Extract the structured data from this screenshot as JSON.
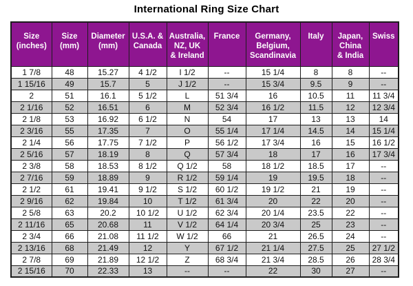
{
  "page": {
    "title": "International Ring Size Chart"
  },
  "colors": {
    "header_bg": "#8E1690",
    "header_text": "#FFFFFF",
    "row_bg": "#FFFFFF",
    "row_alt_bg": "#C9C9C9",
    "border": "#1C1C1C",
    "title": "#000000"
  },
  "chart_data": {
    "type": "table",
    "title": "International Ring Size Chart",
    "columns": [
      "Size (inches)",
      "Size (mm)",
      "Diameter (mm)",
      "U.S.A. & Canada",
      "Australia, NZ, UK & Ireland",
      "France",
      "Germany, Belgium, Scandinavia",
      "Italy",
      "Japan, China & India",
      "Swiss"
    ],
    "header_display": [
      "Size\n(inches)",
      "Size\n(mm)",
      "Diameter\n(mm)",
      "U.S.A. &\nCanada",
      "Australia,\nNZ, UK\n& Ireland",
      "France",
      "Germany,\nBelgium,\nScandinavia",
      "Italy",
      "Japan,\nChina\n& India",
      "Swiss"
    ],
    "rows": [
      [
        "1 7/8",
        "48",
        "15.27",
        "4 1/2",
        "I 1/2",
        "--",
        "15 1/4",
        "8",
        "8",
        "--"
      ],
      [
        "1 15/16",
        "49",
        "15.7",
        "5",
        "J 1/2",
        "--",
        "15 3/4",
        "9.5",
        "9",
        "--"
      ],
      [
        "2",
        "51",
        "16.1",
        "5 1/2",
        "L",
        "51 3/4",
        "16",
        "10.5",
        "11",
        "11 3/4"
      ],
      [
        "2 1/16",
        "52",
        "16.51",
        "6",
        "M",
        "52 3/4",
        "16 1/2",
        "11.5",
        "12",
        "12 3/4"
      ],
      [
        "2 1/8",
        "53",
        "16.92",
        "6 1/2",
        "N",
        "54",
        "17",
        "13",
        "13",
        "14"
      ],
      [
        "2 3/16",
        "55",
        "17.35",
        "7",
        "O",
        "55 1/4",
        "17 1/4",
        "14.5",
        "14",
        "15 1/4"
      ],
      [
        "2 1/4",
        "56",
        "17.75",
        "7 1/2",
        "P",
        "56 1/2",
        "17 3/4",
        "16",
        "15",
        "16 1/2"
      ],
      [
        "2 5/16",
        "57",
        "18.19",
        "8",
        "Q",
        "57 3/4",
        "18",
        "17",
        "16",
        "17 3/4"
      ],
      [
        "2 3/8",
        "58",
        "18.53",
        "8 1/2",
        "Q 1/2",
        "58",
        "18 1/2",
        "18.5",
        "17",
        "--"
      ],
      [
        "2 7/16",
        "59",
        "18.89",
        "9",
        "R 1/2",
        "59 1/4",
        "19",
        "19.5",
        "18",
        "--"
      ],
      [
        "2 1/2",
        "61",
        "19.41",
        "9 1/2",
        "S 1/2",
        "60 1/2",
        "19 1/2",
        "21",
        "19",
        "--"
      ],
      [
        "2 9/16",
        "62",
        "19.84",
        "10",
        "T 1/2",
        "61 3/4",
        "20",
        "22",
        "20",
        "--"
      ],
      [
        "2 5/8",
        "63",
        "20.2",
        "10 1/2",
        "U 1/2",
        "62 3/4",
        "20 1/4",
        "23.5",
        "22",
        "--"
      ],
      [
        "2 11/16",
        "65",
        "20.68",
        "11",
        "V 1/2",
        "64 1/4",
        "20 3/4",
        "25",
        "23",
        "--"
      ],
      [
        "2 3/4",
        "66",
        "21.08",
        "11 1/2",
        "W 1/2",
        "66",
        "21",
        "26.5",
        "24",
        "--"
      ],
      [
        "2 13/16",
        "68",
        "21.49",
        "12",
        "Y",
        "67 1/2",
        "21 1/4",
        "27.5",
        "25",
        "27 1/2"
      ],
      [
        "2 7/8",
        "69",
        "21.89",
        "12 1/2",
        "Z",
        "68 3/4",
        "21 3/4",
        "28.5",
        "26",
        "28 3/4"
      ],
      [
        "2 15/16",
        "70",
        "22.33",
        "13",
        "--",
        "--",
        "22",
        "30",
        "27",
        "--"
      ]
    ]
  }
}
